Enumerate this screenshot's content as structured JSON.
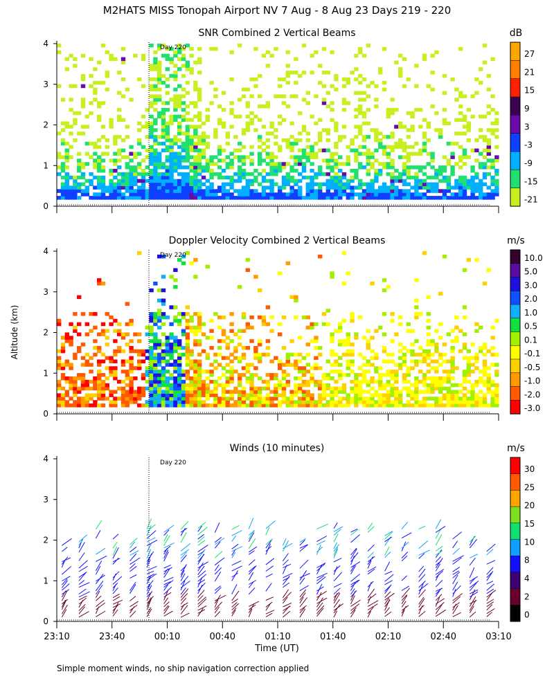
{
  "title": "M2HATS MISS Tonopah Airport NV   7 Aug -  8 Aug 23 Days 219 - 220",
  "ylabel": "Altitude (km)",
  "xlabel": "Time (UT)",
  "footnote": "Simple moment winds, no ship navigation correction applied",
  "day_marker": "Day 220",
  "x_ticks": [
    "23:10",
    "23:40",
    "00:10",
    "00:40",
    "01:10",
    "01:40",
    "02:10",
    "02:40",
    "03:10"
  ],
  "y_ticks": [
    "0",
    "1",
    "2",
    "3",
    "4"
  ],
  "chart_data": [
    {
      "type": "heatmap",
      "title": "SNR Combined 2 Vertical Beams",
      "unit": "dB",
      "x_range": [
        "23:10",
        "03:10"
      ],
      "ylim": [
        0,
        4
      ],
      "colorbar": {
        "labels": [
          "27",
          "21",
          "15",
          "9",
          "3",
          "-3",
          "-9",
          "-15",
          "-21"
        ],
        "colors": [
          "#ffa500",
          "#ff7f00",
          "#ff2000",
          "#3c0050",
          "#6a0aa8",
          "#1040ff",
          "#00b0ff",
          "#20e070",
          "#c8f020"
        ]
      }
    },
    {
      "type": "heatmap",
      "title": "Doppler Velocity Combined 2 Vertical Beams",
      "unit": "m/s",
      "x_range": [
        "23:10",
        "03:10"
      ],
      "ylim": [
        0,
        4
      ],
      "colorbar": {
        "labels": [
          "10.0",
          "5.0",
          "3.0",
          "2.0",
          "1.0",
          "0.5",
          "0.1",
          "-0.1",
          "-0.5",
          "-1.0",
          "-2.0",
          "-3.0"
        ],
        "colors": [
          "#30002e",
          "#5a0aa0",
          "#2010e0",
          "#1050ff",
          "#10b0ff",
          "#10e040",
          "#a0f000",
          "#ffff00",
          "#ffd000",
          "#ff9a00",
          "#ff5a00",
          "#ff0000"
        ]
      }
    },
    {
      "type": "scatter",
      "title": "Winds (10 minutes)",
      "unit": "m/s",
      "x_range": [
        "23:10",
        "03:10"
      ],
      "ylim": [
        0,
        4
      ],
      "colorbar": {
        "labels": [
          "30",
          "25",
          "20",
          "15",
          "10",
          "8",
          "4",
          "2",
          "0"
        ],
        "colors": [
          "#ff0000",
          "#ff5a00",
          "#ffa500",
          "#80e020",
          "#10e070",
          "#10a0ff",
          "#1010ff",
          "#3c0070",
          "#6a0030",
          "#000000"
        ]
      }
    }
  ]
}
